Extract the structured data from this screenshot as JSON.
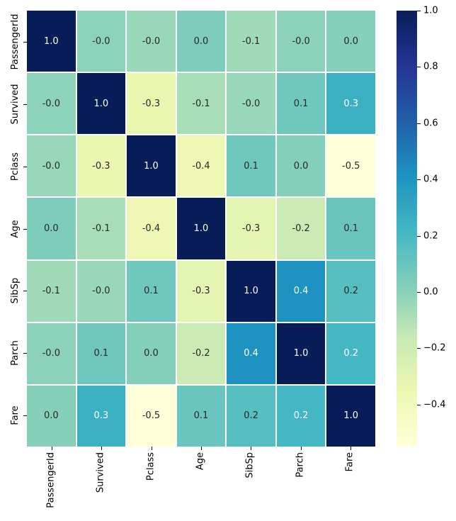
{
  "figure": {
    "background": "#ffffff"
  },
  "chart_data": {
    "type": "heatmap",
    "title": "",
    "xlabel": "",
    "ylabel": "",
    "x_categories": [
      "PassengerId",
      "Survived",
      "Pclass",
      "Age",
      "SibSp",
      "Parch",
      "Fare"
    ],
    "y_categories": [
      "PassengerId",
      "Survived",
      "Pclass",
      "Age",
      "SibSp",
      "Parch",
      "Fare"
    ],
    "matrix": [
      [
        1.0,
        -0.005,
        -0.035,
        0.036,
        -0.058,
        -0.002,
        0.013
      ],
      [
        -0.005,
        1.0,
        -0.338,
        -0.077,
        -0.035,
        0.082,
        0.257
      ],
      [
        -0.035,
        -0.338,
        1.0,
        -0.369,
        0.083,
        0.018,
        -0.549
      ],
      [
        0.036,
        -0.077,
        -0.369,
        1.0,
        -0.308,
        -0.189,
        0.096
      ],
      [
        -0.058,
        -0.035,
        0.083,
        -0.308,
        1.0,
        0.415,
        0.16
      ],
      [
        -0.002,
        0.082,
        0.018,
        -0.189,
        0.415,
        1.0,
        0.216
      ],
      [
        0.013,
        0.257,
        -0.549,
        0.096,
        0.16,
        0.216,
        1.0
      ]
    ],
    "annotations": [
      [
        "1.0",
        "-0.0",
        "-0.0",
        "0.0",
        "-0.1",
        "-0.0",
        "0.0"
      ],
      [
        "-0.0",
        "1.0",
        "-0.3",
        "-0.1",
        "-0.0",
        "0.1",
        "0.3"
      ],
      [
        "-0.0",
        "-0.3",
        "1.0",
        "-0.4",
        "0.1",
        "0.0",
        "-0.5"
      ],
      [
        "0.0",
        "-0.1",
        "-0.4",
        "1.0",
        "-0.3",
        "-0.2",
        "0.1"
      ],
      [
        "-0.1",
        "-0.0",
        "0.1",
        "-0.3",
        "1.0",
        "0.4",
        "0.2"
      ],
      [
        "-0.0",
        "0.1",
        "0.0",
        "-0.2",
        "0.4",
        "1.0",
        "0.2"
      ],
      [
        "0.0",
        "0.3",
        "-0.5",
        "0.1",
        "0.2",
        "0.2",
        "1.0"
      ]
    ],
    "vmin": -0.549,
    "vmax": 1.0,
    "colormap_name": "YlGnBu",
    "colormap_stops": [
      {
        "t": 0.0,
        "color": "#ffffd9"
      },
      {
        "t": 0.125,
        "color": "#edf8b1"
      },
      {
        "t": 0.25,
        "color": "#c7e9b4"
      },
      {
        "t": 0.375,
        "color": "#7fcdbb"
      },
      {
        "t": 0.5,
        "color": "#41b6c4"
      },
      {
        "t": 0.625,
        "color": "#1d91c0"
      },
      {
        "t": 0.75,
        "color": "#225ea8"
      },
      {
        "t": 0.875,
        "color": "#253494"
      },
      {
        "t": 1.0,
        "color": "#081d58"
      }
    ],
    "grid_line_color": "#ffffff",
    "tick_color": "#000000",
    "tick_label_color": "#000000",
    "annotation_text_light": "#ffffff",
    "annotation_text_dark": "#262626",
    "luminance_threshold": 0.408,
    "legend_position": "right",
    "colorbar": {
      "tick_labels": [
        "1.0",
        "0.8",
        "0.6",
        "0.4",
        "0.2",
        "0.0",
        "−0.2",
        "−0.4"
      ],
      "tick_values": [
        1.0,
        0.8,
        0.6,
        0.4,
        0.2,
        0.0,
        -0.2,
        -0.4
      ]
    }
  }
}
